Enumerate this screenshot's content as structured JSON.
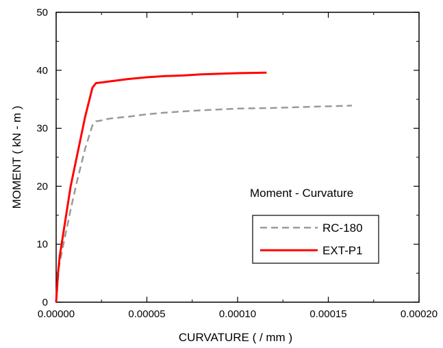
{
  "chart_data": {
    "type": "line",
    "title": "",
    "annotation": "Moment - Curvature",
    "xlabel": "CURVATURE ( / mm )",
    "ylabel": "MOMENT ( kN - m )",
    "xlim": [
      0,
      0.0002
    ],
    "ylim": [
      0,
      50
    ],
    "x_ticks": [
      0,
      5e-05,
      0.0001,
      0.00015,
      0.0002
    ],
    "x_tick_labels": [
      "0.00000",
      "0.00005",
      "0.00010",
      "0.00015",
      "0.00020"
    ],
    "y_ticks": [
      0,
      10,
      20,
      30,
      40,
      50
    ],
    "y_tick_labels": [
      "0",
      "10",
      "20",
      "30",
      "40",
      "50"
    ],
    "grid": false,
    "legend_position": "right",
    "series": [
      {
        "name": "RC-180",
        "color": "#999999",
        "style": "dashed",
        "x": [
          0,
          1.5e-06,
          4e-06,
          8e-06,
          1.2e-05,
          1.6e-05,
          2e-05,
          2.2e-05,
          2.4e-05,
          3e-05,
          4e-05,
          5e-05,
          6e-05,
          8e-05,
          0.0001,
          0.00012,
          0.00014,
          0.000163
        ],
        "y": [
          0,
          6,
          10,
          16,
          21.5,
          26.5,
          30.5,
          31.2,
          31.3,
          31.7,
          32,
          32.4,
          32.7,
          33.1,
          33.4,
          33.5,
          33.7,
          33.9
        ]
      },
      {
        "name": "EXT-P1",
        "color": "#ff0000",
        "style": "solid",
        "x": [
          0,
          1e-06,
          2e-06,
          4e-06,
          8e-06,
          1.2e-05,
          1.6e-05,
          2e-05,
          2.2e-05,
          2.5e-05,
          3e-05,
          4e-05,
          5e-05,
          6e-05,
          7e-05,
          8e-05,
          9e-05,
          0.0001,
          0.000116
        ],
        "y": [
          0,
          5,
          8,
          12,
          20,
          26,
          32,
          37,
          37.8,
          37.9,
          38.1,
          38.5,
          38.8,
          39,
          39.1,
          39.3,
          39.4,
          39.5,
          39.6
        ]
      }
    ]
  }
}
